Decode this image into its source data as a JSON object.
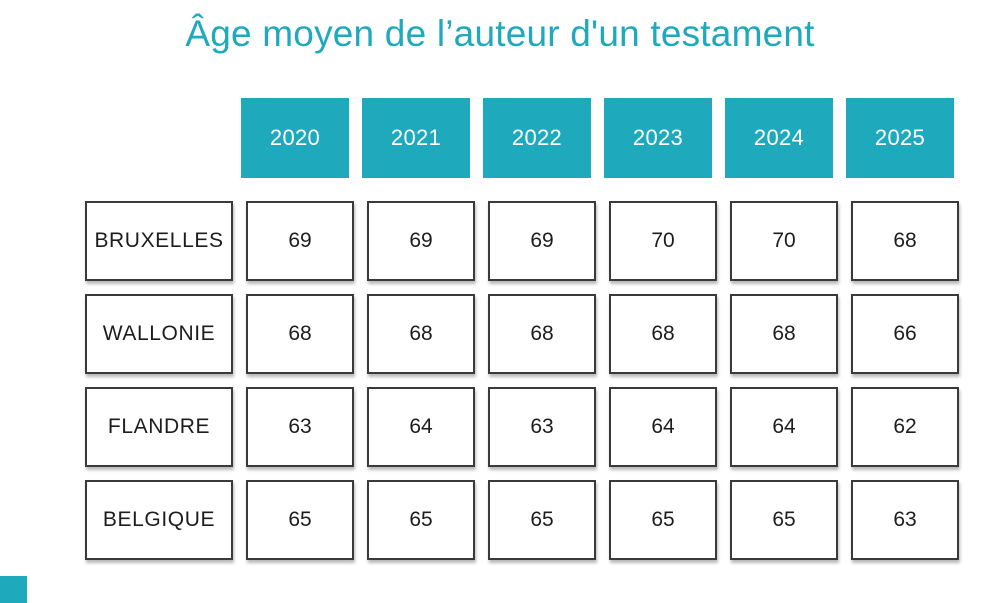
{
  "colors": {
    "teal": "#1ea9bd",
    "cell_border": "#3a3a3a",
    "cell_text": "#1d1d1d",
    "header_text": "#ffffff",
    "background": "#ffffff"
  },
  "chart_data": {
    "type": "table",
    "title": "Âge moyen de l’auteur d'un testament",
    "columns": [
      "2020",
      "2021",
      "2022",
      "2023",
      "2024",
      "2025"
    ],
    "rows": [
      {
        "label": "BRUXELLES",
        "values": [
          69,
          69,
          69,
          70,
          70,
          68
        ]
      },
      {
        "label": "WALLONIE",
        "values": [
          68,
          68,
          68,
          68,
          68,
          66
        ]
      },
      {
        "label": "FLANDRE",
        "values": [
          63,
          64,
          63,
          64,
          64,
          62
        ]
      },
      {
        "label": "BELGIQUE",
        "values": [
          65,
          65,
          65,
          65,
          65,
          63
        ]
      }
    ]
  }
}
